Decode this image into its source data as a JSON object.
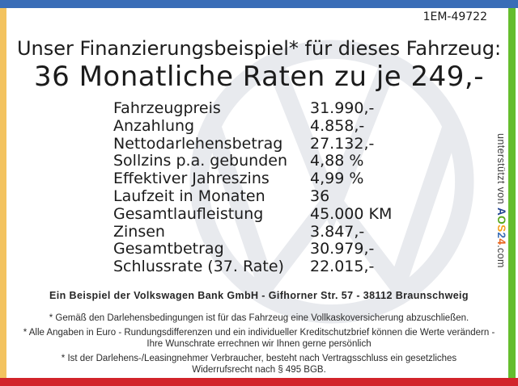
{
  "page": {
    "doc_number": "1EM-49722"
  },
  "title": {
    "line1": "Unser Finanzierungsbeispiel* für dieses Fahrzeug:",
    "line2": "36 Monatliche Raten zu je 249,-"
  },
  "table": {
    "rows": [
      {
        "label": "Fahrzeugpreis",
        "value": "31.990,-"
      },
      {
        "label": "Anzahlung",
        "value": "4.858,-"
      },
      {
        "label": "Nettodarlehensbetrag",
        "value": "27.132,-"
      },
      {
        "label": "Sollzins p.a. gebunden",
        "value": "4,88 %"
      },
      {
        "label": "Effektiver Jahreszins",
        "value": "4,99 %"
      },
      {
        "label": "Laufzeit in Monaten",
        "value": "36"
      },
      {
        "label": "Gesamtlaufleistung",
        "value": "45.000 KM"
      },
      {
        "label": "Zinsen",
        "value": "3.847,-"
      },
      {
        "label": "Gesamtbetrag",
        "value": "30.979,-"
      },
      {
        "label": "Schlussrate (37. Rate)",
        "value": "22.015,-"
      }
    ]
  },
  "footer": {
    "bank_line": "Ein Beispiel der Volkswagen Bank GmbH - Gifhorner Str. 57 - 38112 Braunschweig",
    "disclaimers": [
      "* Gemäß den Darlehensbedingungen ist für das Fahrzeug eine Vollkaskoversicherung abzuschließen.",
      "* Alle Angaben in Euro - Rundungsdifferenzen und ein individueller Kreditschutzbrief können die Werte verändern - Ihre Wunschrate errechnen wir Ihnen gerne persönlich",
      "* Ist der Darlehens-/Leasingnehmer Verbraucher, besteht nach Vertragsschluss ein gesetzliches Widerrufsrecht nach § 495 BGB."
    ]
  },
  "support": {
    "prefix": "unterstützt von",
    "brand": [
      {
        "ch": "A",
        "color": "#1d3f8f"
      },
      {
        "ch": "O",
        "color": "#58a81e"
      },
      {
        "ch": "S",
        "color": "#f6a01a"
      },
      {
        "ch": "2",
        "color": "#3a6db5"
      },
      {
        "ch": "4",
        "color": "#e8641b"
      }
    ],
    "suffix": ".com"
  },
  "frame": {
    "top_color": "#3a6db7",
    "left_color": "#f3c35f",
    "right_color": "#65bd2d",
    "bottom_color": "#d2232a"
  },
  "watermark": {
    "icon": "vw-logo",
    "color": "#e8eaee"
  }
}
